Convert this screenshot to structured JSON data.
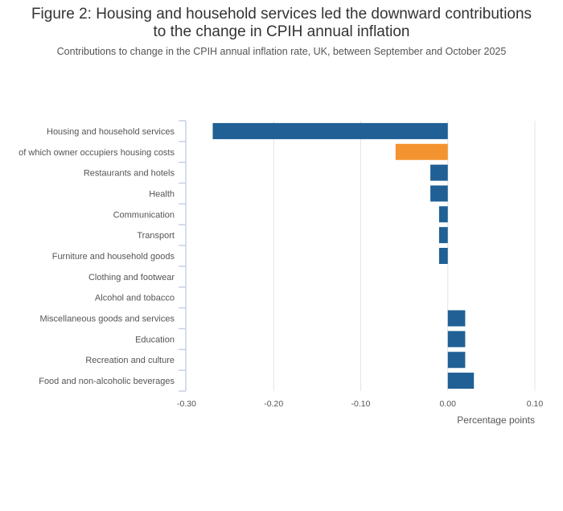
{
  "chart_data": {
    "type": "bar",
    "orientation": "horizontal",
    "title": "Figure 2: Housing and household services led the downward contributions to the change in CPIH annual inflation",
    "title_lines": [
      "Figure 2: Housing and household services led the downward contributions",
      "to the change in CPIH annual inflation"
    ],
    "subtitle": "Contributions to change in the CPIH annual inflation rate, UK, between September and October 2025",
    "xlabel": "Percentage points",
    "ylabel": "",
    "xlim": [
      -0.3,
      0.1
    ],
    "xticks": [
      -0.3,
      -0.2,
      -0.1,
      0.0,
      0.1
    ],
    "xtick_labels": [
      "-0.30",
      "-0.20",
      "-0.10",
      "0.00",
      "0.10"
    ],
    "grid": true,
    "categories": [
      "Housing and household services",
      "of which owner occupiers housing costs",
      "Restaurants and hotels",
      "Health",
      "Communication",
      "Transport",
      "Furniture and household goods",
      "Clothing and footwear",
      "Alcohol and tobacco",
      "Miscellaneous goods and services",
      "Education",
      "Recreation and culture",
      "Food and non-alcoholic beverages"
    ],
    "values": [
      -0.27,
      -0.06,
      -0.02,
      -0.02,
      -0.01,
      -0.01,
      -0.01,
      0.0,
      0.0,
      0.02,
      0.02,
      0.02,
      0.03
    ],
    "colors": [
      "#206095",
      "#f39431",
      "#206095",
      "#206095",
      "#206095",
      "#206095",
      "#206095",
      "#206095",
      "#206095",
      "#206095",
      "#206095",
      "#206095",
      "#206095"
    ]
  }
}
